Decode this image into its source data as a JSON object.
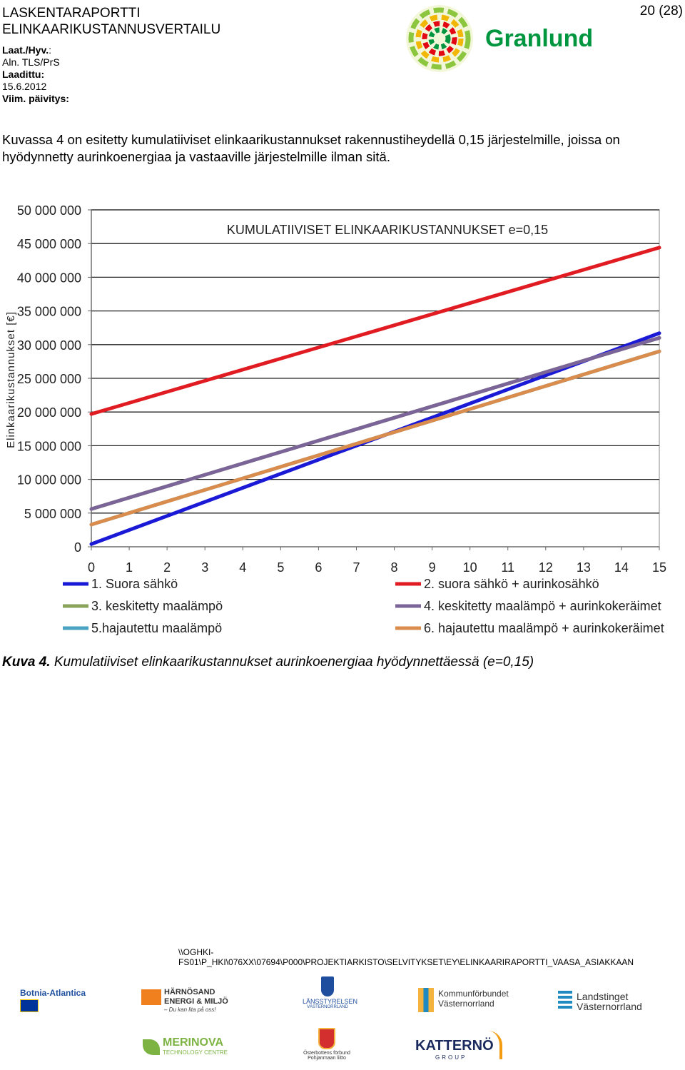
{
  "header": {
    "title_line1": "LASKENTARAPORTTI",
    "title_line2": "ELINKAARIKUSTANNUSVERTAILU",
    "laat_label": "Laat./Hyv.",
    "laat_sep": ":",
    "aln": "Aln. TLS/PrS",
    "laadittu_label": "Laadittu:",
    "date": "15.6.2012",
    "viim_label": "Viim. päivitys:",
    "page": "20 (28)",
    "logo_text": "Granlund"
  },
  "body": {
    "intro": "Kuvassa 4 on esitetty kumulatiiviset elinkaarikustannukset rakennustiheydellä 0,15 järjestelmille, joissa on hyödynnetty aurinkoenergiaa ja vastaaville järjestelmille ilman sitä.",
    "caption_label": "Kuva 4.",
    "caption_text": " Kumulatiiviset elinkaarikustannukset aurinkoenergiaa hyödynnettäessä (e=0,15)"
  },
  "chart_data": {
    "type": "line",
    "title": "KUMULATIIVISET ELINKAARIKUSTANNUKSET e=0,15",
    "ylabel": "Elinkaarikustannukset [€]",
    "xlabel": "",
    "x": [
      0,
      15
    ],
    "ylim": [
      0,
      50000000
    ],
    "xlim": [
      0,
      15
    ],
    "yticks": [
      "0",
      "5 000 000",
      "10 000 000",
      "15 000 000",
      "20 000 000",
      "25 000 000",
      "30 000 000",
      "35 000 000",
      "40 000 000",
      "45 000 000",
      "50 000 000"
    ],
    "xticks": [
      "0",
      "1",
      "2",
      "3",
      "4",
      "5",
      "6",
      "7",
      "8",
      "9",
      "10",
      "11",
      "12",
      "13",
      "14",
      "15"
    ],
    "grid": true,
    "legend_position": "bottom",
    "series": [
      {
        "name": "1. Suora sähkö",
        "color": "#1a1ad6",
        "values": [
          400000,
          31700000
        ]
      },
      {
        "name": "2.  suora sähkö + aurinkosähkö",
        "color": "#e11b22",
        "values": [
          19700000,
          44400000
        ]
      },
      {
        "name": "3. keskitetty maalämpö",
        "color": "#8aa35b",
        "values": [
          5600000,
          31000000
        ]
      },
      {
        "name": "4. keskitetty maalämpö + aurinkokeräimet",
        "color": "#7b6497",
        "values": [
          5600000,
          31000000
        ]
      },
      {
        "name": "5.hajautettu maalämpö",
        "color": "#4aa3c1",
        "values": [
          3300000,
          29000000
        ]
      },
      {
        "name": "6. hajautettu maalämpö + aurinkokeräimet",
        "color": "#d98c4c",
        "values": [
          3300000,
          29000000
        ]
      }
    ]
  },
  "footer": {
    "path_line1": "\\\\OGHKI-",
    "path_line2": "FS01\\P_HKI\\076XX\\07694\\P000\\PROJEKTIARKISTO\\SELVITYKSET\\EY\\ELINKAARIRAPORTTI_VAASA_ASIAKKAAN",
    "partners": {
      "botnia": "Botnia-Atlantica",
      "harnosand1": "HÄRNÖSAND",
      "harnosand2": "ENERGI & MILJÖ",
      "harnosand3": "– Du kan lita på oss!",
      "lansstyrelsen1": "LÄNSSTYRELSEN",
      "lansstyrelsen2": "VÄSTERNORRLAND",
      "kommun1": "Kommunförbundet",
      "kommun2": "Västernorrland",
      "landsting1": "Landstinget",
      "landsting2": "Västernorrland",
      "merinova1": "MERINOVA",
      "merinova2": "TECHNOLOGY CENTRE",
      "osterbotten1": "Österbottens förbund",
      "osterbotten2": "Pohjanmaan liitto",
      "katterno1": "KATTERNÖ",
      "katterno2": "GROUP"
    }
  }
}
